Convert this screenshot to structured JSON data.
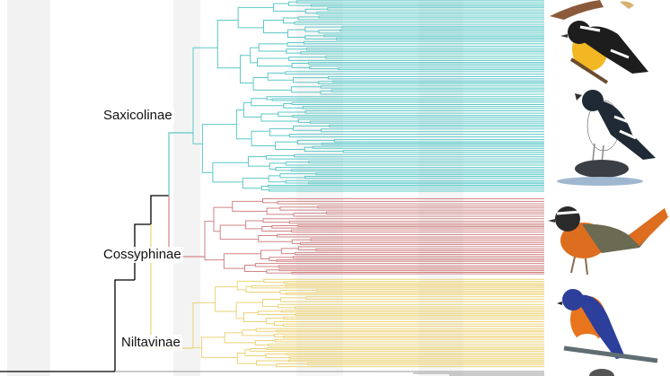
{
  "clades": [
    {
      "name": "Saxicolinae",
      "color": "#5cc8c8"
    },
    {
      "name": "Cossyphinae",
      "color": "#d08585"
    },
    {
      "name": "Niltavinae",
      "color": "#ecd276"
    }
  ],
  "colors": {
    "backbone": "#000000",
    "bands": [
      "#f2f2f2",
      "#f7f7f7",
      "#efefef",
      "#f4f4f4"
    ]
  },
  "illustrations": [
    {
      "icon": "bird-in-flight-icon"
    },
    {
      "icon": "yellow-breasted-flycatcher-icon"
    },
    {
      "icon": "black-white-forktail-icon"
    },
    {
      "icon": "orange-robin-chat-icon"
    },
    {
      "icon": "blue-orange-flycatcher-icon"
    },
    {
      "icon": "grey-bird-icon"
    }
  ]
}
